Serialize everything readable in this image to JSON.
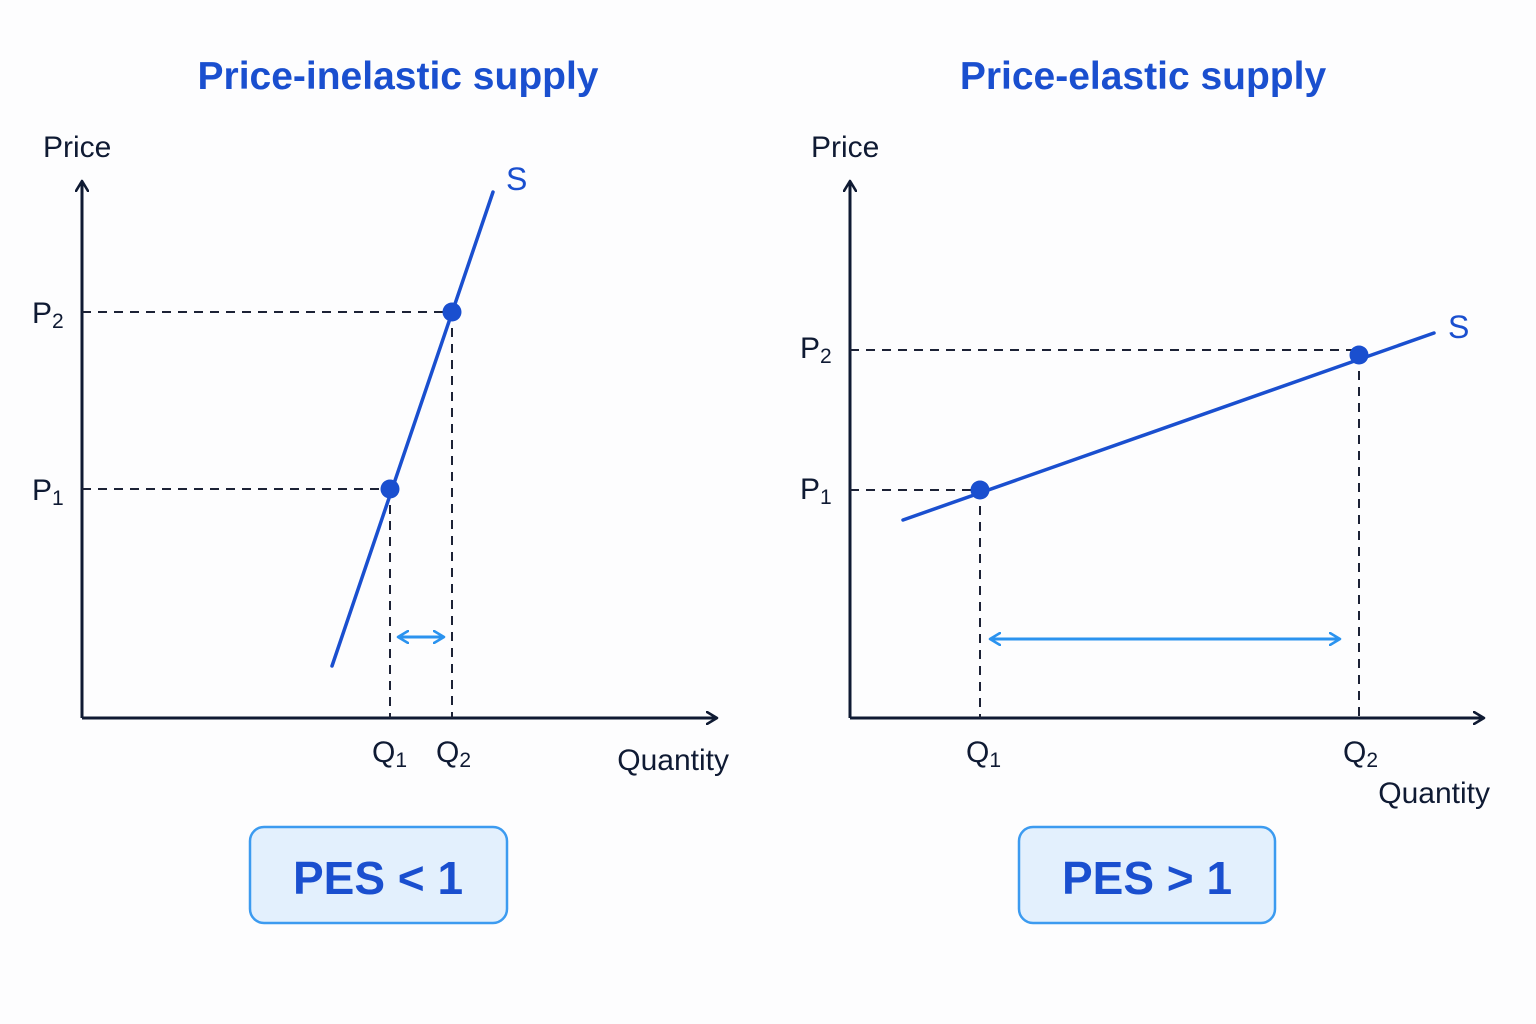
{
  "colors": {
    "title": "#1a4fcf",
    "axis": "#0f1a33",
    "curve": "#1a4fcf",
    "point": "#1a4fcf",
    "dash": "#1c2236",
    "arrow": "#2b93ef",
    "badge_fill": "#e3f0fd",
    "badge_border": "#3c9bf0",
    "badge_text": "#1a4fcf",
    "text": "#0f1a33"
  },
  "panels": [
    {
      "title": "Price-inelastic supply",
      "y_axis_label": "Price",
      "x_axis_label": "Quantity",
      "curve_label": "S",
      "p1": {
        "main": "P",
        "sub": "1"
      },
      "p2": {
        "main": "P",
        "sub": "2"
      },
      "q1": {
        "main": "Q",
        "sub": "1"
      },
      "q2": {
        "main": "Q",
        "sub": "2"
      },
      "badge": "PES < 1"
    },
    {
      "title": "Price-elastic supply",
      "y_axis_label": "Price",
      "x_axis_label": "Quantity",
      "curve_label": "S",
      "p1": {
        "main": "P",
        "sub": "1"
      },
      "p2": {
        "main": "P",
        "sub": "2"
      },
      "q1": {
        "main": "Q",
        "sub": "1"
      },
      "q2": {
        "main": "Q",
        "sub": "2"
      },
      "badge": "PES > 1"
    }
  ]
}
